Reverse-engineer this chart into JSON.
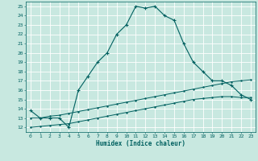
{
  "title": "",
  "xlabel": "Humidex (Indice chaleur)",
  "ylabel": "",
  "bg_color": "#c8e8e0",
  "grid_color": "#ffffff",
  "line_color": "#006060",
  "xlim": [
    -0.5,
    23.5
  ],
  "ylim": [
    11.5,
    25.5
  ],
  "xticks": [
    0,
    1,
    2,
    3,
    4,
    5,
    6,
    7,
    8,
    9,
    10,
    11,
    12,
    13,
    14,
    15,
    16,
    17,
    18,
    19,
    20,
    21,
    22,
    23
  ],
  "yticks": [
    12,
    13,
    14,
    15,
    16,
    17,
    18,
    19,
    20,
    21,
    22,
    23,
    24,
    25
  ],
  "series1_x": [
    0,
    1,
    2,
    3,
    4,
    5,
    6,
    7,
    8,
    9,
    10,
    11,
    12,
    13,
    14,
    15,
    16,
    17,
    18,
    19,
    20,
    21,
    22,
    23
  ],
  "series1_y": [
    13.8,
    13.0,
    13.0,
    13.0,
    12.0,
    16.0,
    17.5,
    19.0,
    20.0,
    22.0,
    23.0,
    25.0,
    24.8,
    25.0,
    24.0,
    23.5,
    21.0,
    19.0,
    18.0,
    17.0,
    17.0,
    16.5,
    15.5,
    15.0
  ],
  "series2_x": [
    0,
    1,
    2,
    3,
    4,
    5,
    6,
    7,
    8,
    9,
    10,
    11,
    12,
    13,
    14,
    15,
    16,
    17,
    18,
    19,
    20,
    21,
    22,
    23
  ],
  "series2_y": [
    13.0,
    13.0,
    13.2,
    13.3,
    13.5,
    13.7,
    13.9,
    14.1,
    14.3,
    14.5,
    14.7,
    14.9,
    15.1,
    15.3,
    15.5,
    15.7,
    15.9,
    16.1,
    16.3,
    16.5,
    16.7,
    16.9,
    17.0,
    17.1
  ],
  "series3_x": [
    0,
    1,
    2,
    3,
    4,
    5,
    6,
    7,
    8,
    9,
    10,
    11,
    12,
    13,
    14,
    15,
    16,
    17,
    18,
    19,
    20,
    21,
    22,
    23
  ],
  "series3_y": [
    12.0,
    12.1,
    12.2,
    12.3,
    12.4,
    12.6,
    12.8,
    13.0,
    13.2,
    13.4,
    13.6,
    13.8,
    14.0,
    14.2,
    14.4,
    14.6,
    14.8,
    15.0,
    15.1,
    15.2,
    15.3,
    15.3,
    15.2,
    15.2
  ],
  "xlabel_fontsize": 5.5,
  "tick_fontsize": 4.5
}
